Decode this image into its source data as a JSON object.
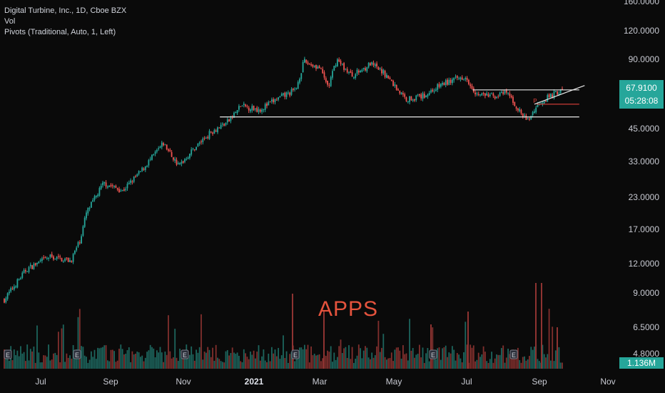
{
  "legend": {
    "symbol_line": "Digital Turbine, Inc., 1D, Cboe BZX",
    "vol_label": "Vol",
    "pivots_label": "Pivots (Traditional, Auto, 1, Left)"
  },
  "watermark": "APPS",
  "last_price": "67.9100",
  "countdown": "05:28:08",
  "volume_value": "1.136M",
  "pivot_marker": "P",
  "earnings_marker": "E",
  "colors": {
    "up": "#26a69a",
    "down": "#ef5350",
    "background": "#0a0a0a",
    "badge": "#26a69a",
    "watermark": "#e5533d"
  },
  "chart_data": {
    "type": "candlestick",
    "scale": "log",
    "y_ticks": [
      "160.0000",
      "120.0000",
      "90.0000",
      "67.9100",
      "45.0000",
      "33.0000",
      "23.0000",
      "17.0000",
      "12.0000",
      "9.0000",
      "6.5000",
      "4.8000"
    ],
    "x_ticks": [
      "Jul",
      "Sep",
      "Nov",
      "2021",
      "Mar",
      "May",
      "Jul",
      "Sep",
      "Nov"
    ],
    "price_path": [
      {
        "date": "2020-06-01",
        "close": 8.5
      },
      {
        "date": "2020-06-20",
        "close": 11.5
      },
      {
        "date": "2020-07-10",
        "close": 13.0
      },
      {
        "date": "2020-07-28",
        "close": 12.5
      },
      {
        "date": "2020-08-05",
        "close": 15.5
      },
      {
        "date": "2020-08-10",
        "close": 20.0
      },
      {
        "date": "2020-08-25",
        "close": 27.0
      },
      {
        "date": "2020-09-10",
        "close": 25.0
      },
      {
        "date": "2020-09-25",
        "close": 30.0
      },
      {
        "date": "2020-10-15",
        "close": 40.0
      },
      {
        "date": "2020-10-28",
        "close": 32.0
      },
      {
        "date": "2020-11-10",
        "close": 38.0
      },
      {
        "date": "2020-11-25",
        "close": 45.0
      },
      {
        "date": "2020-12-10",
        "close": 50.0
      },
      {
        "date": "2020-12-20",
        "close": 58.0
      },
      {
        "date": "2021-01-05",
        "close": 56.0
      },
      {
        "date": "2021-01-20",
        "close": 62.0
      },
      {
        "date": "2021-02-05",
        "close": 68.0
      },
      {
        "date": "2021-02-12",
        "close": 90.0
      },
      {
        "date": "2021-02-25",
        "close": 85.0
      },
      {
        "date": "2021-03-05",
        "close": 70.0
      },
      {
        "date": "2021-03-12",
        "close": 92.0
      },
      {
        "date": "2021-03-25",
        "close": 78.0
      },
      {
        "date": "2021-04-10",
        "close": 88.0
      },
      {
        "date": "2021-04-22",
        "close": 80.0
      },
      {
        "date": "2021-05-10",
        "close": 62.0
      },
      {
        "date": "2021-05-25",
        "close": 64.0
      },
      {
        "date": "2021-06-10",
        "close": 72.0
      },
      {
        "date": "2021-06-30",
        "close": 78.0
      },
      {
        "date": "2021-07-10",
        "close": 65.0
      },
      {
        "date": "2021-07-25",
        "close": 64.0
      },
      {
        "date": "2021-08-05",
        "close": 66.0
      },
      {
        "date": "2021-08-15",
        "close": 55.0
      },
      {
        "date": "2021-08-22",
        "close": 50.0
      },
      {
        "date": "2021-09-01",
        "close": 60.0
      },
      {
        "date": "2021-09-15",
        "close": 66.0
      },
      {
        "date": "2021-09-22",
        "close": 67.91
      }
    ],
    "annotations": [
      {
        "type": "horizontal",
        "price": 52.0,
        "from": "2020-12-01",
        "to": "2021-09-28"
      },
      {
        "type": "horizontal",
        "price": 68.0,
        "from": "2021-07-05",
        "to": "2021-09-28"
      },
      {
        "type": "trendline",
        "from": {
          "date": "2021-08-28",
          "price": 59.0
        },
        "to": {
          "date": "2021-10-05",
          "price": 71.0
        }
      },
      {
        "type": "horizontal_red",
        "price": 59.0,
        "from": "2021-08-30",
        "to": "2021-09-28"
      }
    ]
  }
}
